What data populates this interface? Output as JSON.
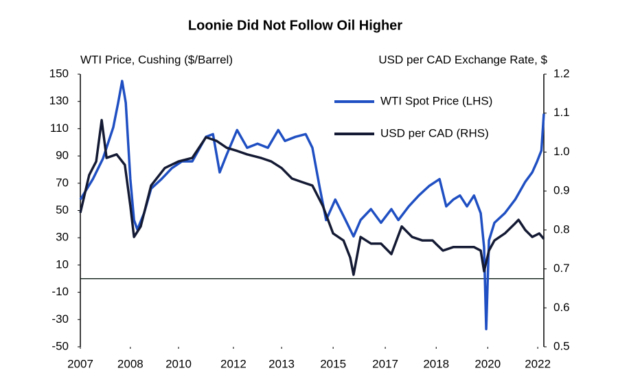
{
  "chart_data": {
    "type": "line",
    "title": "Loonie Did Not Follow Oil Higher",
    "y_label": "WTI Price, Cushing ($/Barrel)",
    "y2_label": "USD per CAD Exchange Rate, $",
    "xlim": [
      2007,
      2022.2
    ],
    "xticks": [
      {
        "value": 2007.0,
        "label": "2007"
      },
      {
        "value": 2008.64,
        "label": "2008"
      },
      {
        "value": 2010.22,
        "label": "2010"
      },
      {
        "value": 2012.02,
        "label": "2012"
      },
      {
        "value": 2013.6,
        "label": "2013"
      },
      {
        "value": 2015.29,
        "label": "2015"
      },
      {
        "value": 2017.0,
        "label": "2017"
      },
      {
        "value": 2018.67,
        "label": "2018"
      },
      {
        "value": 2020.36,
        "label": "2020"
      },
      {
        "value": 2022.0,
        "label": "2022"
      }
    ],
    "ylim": [
      -50,
      150
    ],
    "yticks": [
      150,
      130,
      110,
      90,
      70,
      50,
      30,
      10,
      -10,
      -30,
      -50
    ],
    "y2lim": [
      0.5,
      1.2
    ],
    "y2ticks": [
      1.2,
      1.1,
      {
        "value": 1,
        "label": "1.0"
      },
      0.9,
      0.8,
      0.7,
      0.6,
      0.5
    ],
    "hline": 0,
    "legend": "upper right",
    "series": [
      {
        "name": "WTI Spot Price (LHS)",
        "color": "#1f4fc2",
        "axis": "y",
        "x": [
          2007.0,
          2007.41,
          2007.74,
          2008.08,
          2008.24,
          2008.37,
          2008.49,
          2008.64,
          2008.76,
          2008.87,
          2009.09,
          2009.32,
          2009.66,
          2010.0,
          2010.33,
          2010.67,
          2011.12,
          2011.35,
          2011.57,
          2011.8,
          2012.14,
          2012.47,
          2012.81,
          2013.15,
          2013.49,
          2013.71,
          2014.05,
          2014.39,
          2014.61,
          2014.84,
          2015.06,
          2015.36,
          2015.63,
          2015.96,
          2016.19,
          2016.53,
          2016.86,
          2017.2,
          2017.43,
          2017.77,
          2018.1,
          2018.44,
          2018.78,
          2019.0,
          2019.23,
          2019.45,
          2019.68,
          2019.91,
          2020.13,
          2020.24,
          2020.31,
          2020.4,
          2020.58,
          2020.92,
          2021.26,
          2021.59,
          2021.82,
          2021.98,
          2022.12,
          2022.2
        ],
        "values": [
          58,
          73,
          88,
          111,
          129,
          145,
          129,
          73,
          43,
          36,
          48,
          66,
          73,
          81,
          86,
          86,
          104,
          106,
          78,
          91,
          109,
          96,
          99,
          96,
          109,
          101,
          104,
          106,
          96,
          68,
          43,
          58,
          46,
          31,
          43,
          51,
          41,
          51,
          43,
          53,
          61,
          68,
          73,
          53,
          58,
          61,
          53,
          61,
          48,
          23,
          -37,
          28,
          41,
          48,
          58,
          71,
          78,
          86,
          94,
          121
        ]
      },
      {
        "name": "USD per CAD (RHS)",
        "color": "#141a33",
        "axis": "y2",
        "x": [
          2007.0,
          2007.29,
          2007.52,
          2007.7,
          2007.86,
          2008.19,
          2008.46,
          2008.64,
          2008.76,
          2008.98,
          2009.32,
          2009.77,
          2010.22,
          2010.67,
          2011.12,
          2011.46,
          2011.8,
          2012.14,
          2012.47,
          2012.92,
          2013.26,
          2013.6,
          2013.94,
          2014.27,
          2014.61,
          2014.95,
          2015.29,
          2015.63,
          2015.85,
          2015.96,
          2016.19,
          2016.53,
          2016.86,
          2017.2,
          2017.54,
          2017.88,
          2018.22,
          2018.55,
          2018.89,
          2019.23,
          2019.57,
          2019.91,
          2020.13,
          2020.24,
          2020.4,
          2020.58,
          2020.92,
          2021.26,
          2021.37,
          2021.59,
          2021.82,
          2022.05,
          2022.2
        ],
        "values": [
          0.844,
          0.941,
          0.976,
          1.082,
          0.985,
          0.994,
          0.967,
          0.862,
          0.782,
          0.809,
          0.914,
          0.959,
          0.976,
          0.985,
          1.038,
          1.029,
          1.011,
          1.003,
          0.994,
          0.985,
          0.976,
          0.959,
          0.932,
          0.923,
          0.914,
          0.862,
          0.791,
          0.773,
          0.729,
          0.685,
          0.782,
          0.765,
          0.765,
          0.738,
          0.809,
          0.782,
          0.773,
          0.773,
          0.747,
          0.756,
          0.756,
          0.756,
          0.747,
          0.694,
          0.747,
          0.773,
          0.791,
          0.817,
          0.826,
          0.8,
          0.782,
          0.791,
          0.777
        ]
      }
    ]
  }
}
